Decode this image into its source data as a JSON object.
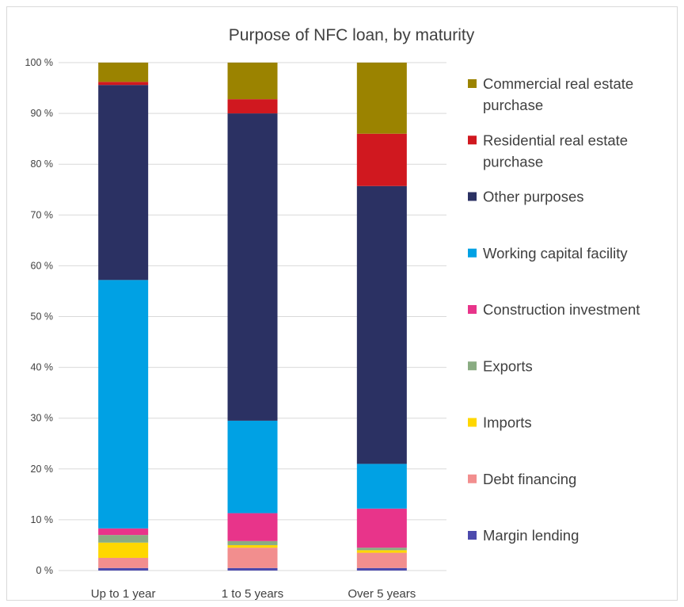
{
  "chart_data": {
    "type": "bar",
    "stacked": true,
    "percent_stacked": true,
    "title": "Purpose of NFC loan, by maturity",
    "xlabel": "",
    "ylabel": "",
    "categories": [
      "Up to 1 year",
      "1 to 5 years",
      "Over 5 years"
    ],
    "ylim": [
      0,
      100
    ],
    "yticks": [
      0,
      10,
      20,
      30,
      40,
      50,
      60,
      70,
      80,
      90,
      100
    ],
    "ytick_labels": [
      "0 %",
      "10 %",
      "20 %",
      "30 %",
      "40 %",
      "50 %",
      "60 %",
      "70 %",
      "80 %",
      "90 %",
      "100 %"
    ],
    "grid": true,
    "legend_position": "right",
    "series": [
      {
        "name": "Margin lending",
        "color": "#4c4aad",
        "values": [
          0.5,
          0.5,
          0.5
        ]
      },
      {
        "name": "Debt financing",
        "color": "#f28e8e",
        "values": [
          2.0,
          4.0,
          3.0
        ]
      },
      {
        "name": "Imports",
        "color": "#ffd700",
        "values": [
          3.0,
          0.5,
          0.5
        ]
      },
      {
        "name": "Exports",
        "color": "#8aac82",
        "values": [
          1.5,
          0.8,
          0.5
        ]
      },
      {
        "name": "Construction investment",
        "color": "#e8348a",
        "values": [
          1.3,
          5.5,
          7.7
        ]
      },
      {
        "name": "Working capital facility",
        "color": "#00a1e4",
        "values": [
          48.9,
          18.2,
          8.8
        ]
      },
      {
        "name": "Other purposes",
        "color": "#2b3163",
        "values": [
          38.4,
          60.5,
          54.7
        ]
      },
      {
        "name": "Residential real estate purchase",
        "color": "#d0181f",
        "values": [
          0.6,
          2.8,
          10.3
        ]
      },
      {
        "name": "Commercial real estate purchase",
        "color": "#9b8300",
        "values": [
          3.8,
          7.2,
          14.0
        ]
      }
    ]
  }
}
